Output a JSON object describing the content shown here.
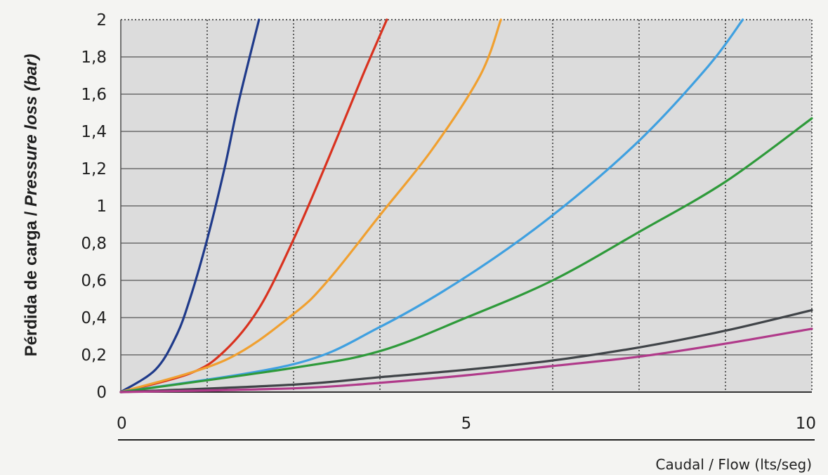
{
  "chart_data": {
    "type": "line",
    "ylabel_plain": "Pérdida de carga / ",
    "ylabel_italic": "Pressure loss (bar)",
    "xlabel": "Caudal / Flow (lts/seg)",
    "xlim": [
      0,
      10
    ],
    "ylim": [
      0,
      2
    ],
    "x_ticks": [
      0,
      5,
      10
    ],
    "x_tick_labels": [
      "0",
      "5",
      "10"
    ],
    "y_ticks": [
      0,
      0.2,
      0.4,
      0.6,
      0.8,
      1,
      1.2,
      1.4,
      1.6,
      1.8,
      2
    ],
    "y_tick_labels": [
      "0",
      "0,2",
      "0,4",
      "0,6",
      "0,8",
      "1",
      "1,2",
      "1,4",
      "1,6",
      "1,8",
      "2"
    ],
    "vertical_dotted_gridlines": [
      1.25,
      2.5,
      3.75,
      6.25,
      7.5,
      8.75
    ],
    "grid": true,
    "colors": {
      "navy": "#1f3a8a",
      "red": "#d9321f",
      "orange": "#f0a030",
      "lightblue": "#3fa0e0",
      "green": "#2e9a3a",
      "darkgray": "#404448",
      "magenta": "#b03a8a",
      "plot_bg": "#dcdcdc",
      "grid": "#6b6b6b"
    },
    "series": [
      {
        "color": "navy",
        "x": [
          0,
          0.5,
          0.8,
          1.0,
          1.25,
          1.5,
          1.7,
          2.0
        ],
        "y": [
          0,
          0.12,
          0.3,
          0.5,
          0.82,
          1.2,
          1.55,
          2.0
        ]
      },
      {
        "color": "red",
        "x": [
          0,
          1.0,
          1.5,
          2.0,
          2.5,
          3.0,
          3.5,
          3.85
        ],
        "y": [
          0,
          0.1,
          0.22,
          0.45,
          0.82,
          1.25,
          1.7,
          2.0
        ]
      },
      {
        "color": "orange",
        "x": [
          0,
          1.5,
          2.5,
          3.0,
          3.75,
          4.5,
          5.2,
          5.5
        ],
        "y": [
          0,
          0.17,
          0.42,
          0.6,
          0.95,
          1.3,
          1.7,
          2.0
        ]
      },
      {
        "color": "lightblue",
        "x": [
          0,
          2.5,
          3.75,
          5.0,
          6.25,
          7.5,
          8.5,
          9.0
        ],
        "y": [
          0,
          0.15,
          0.35,
          0.62,
          0.95,
          1.35,
          1.75,
          2.0
        ]
      },
      {
        "color": "green",
        "x": [
          0,
          2.5,
          3.75,
          5.0,
          6.25,
          7.5,
          8.75,
          10.0
        ],
        "y": [
          0,
          0.13,
          0.22,
          0.4,
          0.6,
          0.86,
          1.13,
          1.47
        ]
      },
      {
        "color": "darkgray",
        "x": [
          0,
          2.5,
          3.75,
          5.0,
          6.25,
          7.5,
          8.75,
          10.0
        ],
        "y": [
          0,
          0.04,
          0.08,
          0.12,
          0.17,
          0.24,
          0.33,
          0.44
        ]
      },
      {
        "color": "magenta",
        "x": [
          0,
          2.5,
          3.75,
          5.0,
          6.25,
          7.5,
          8.75,
          10.0
        ],
        "y": [
          0,
          0.02,
          0.05,
          0.09,
          0.14,
          0.19,
          0.26,
          0.34
        ]
      }
    ]
  }
}
